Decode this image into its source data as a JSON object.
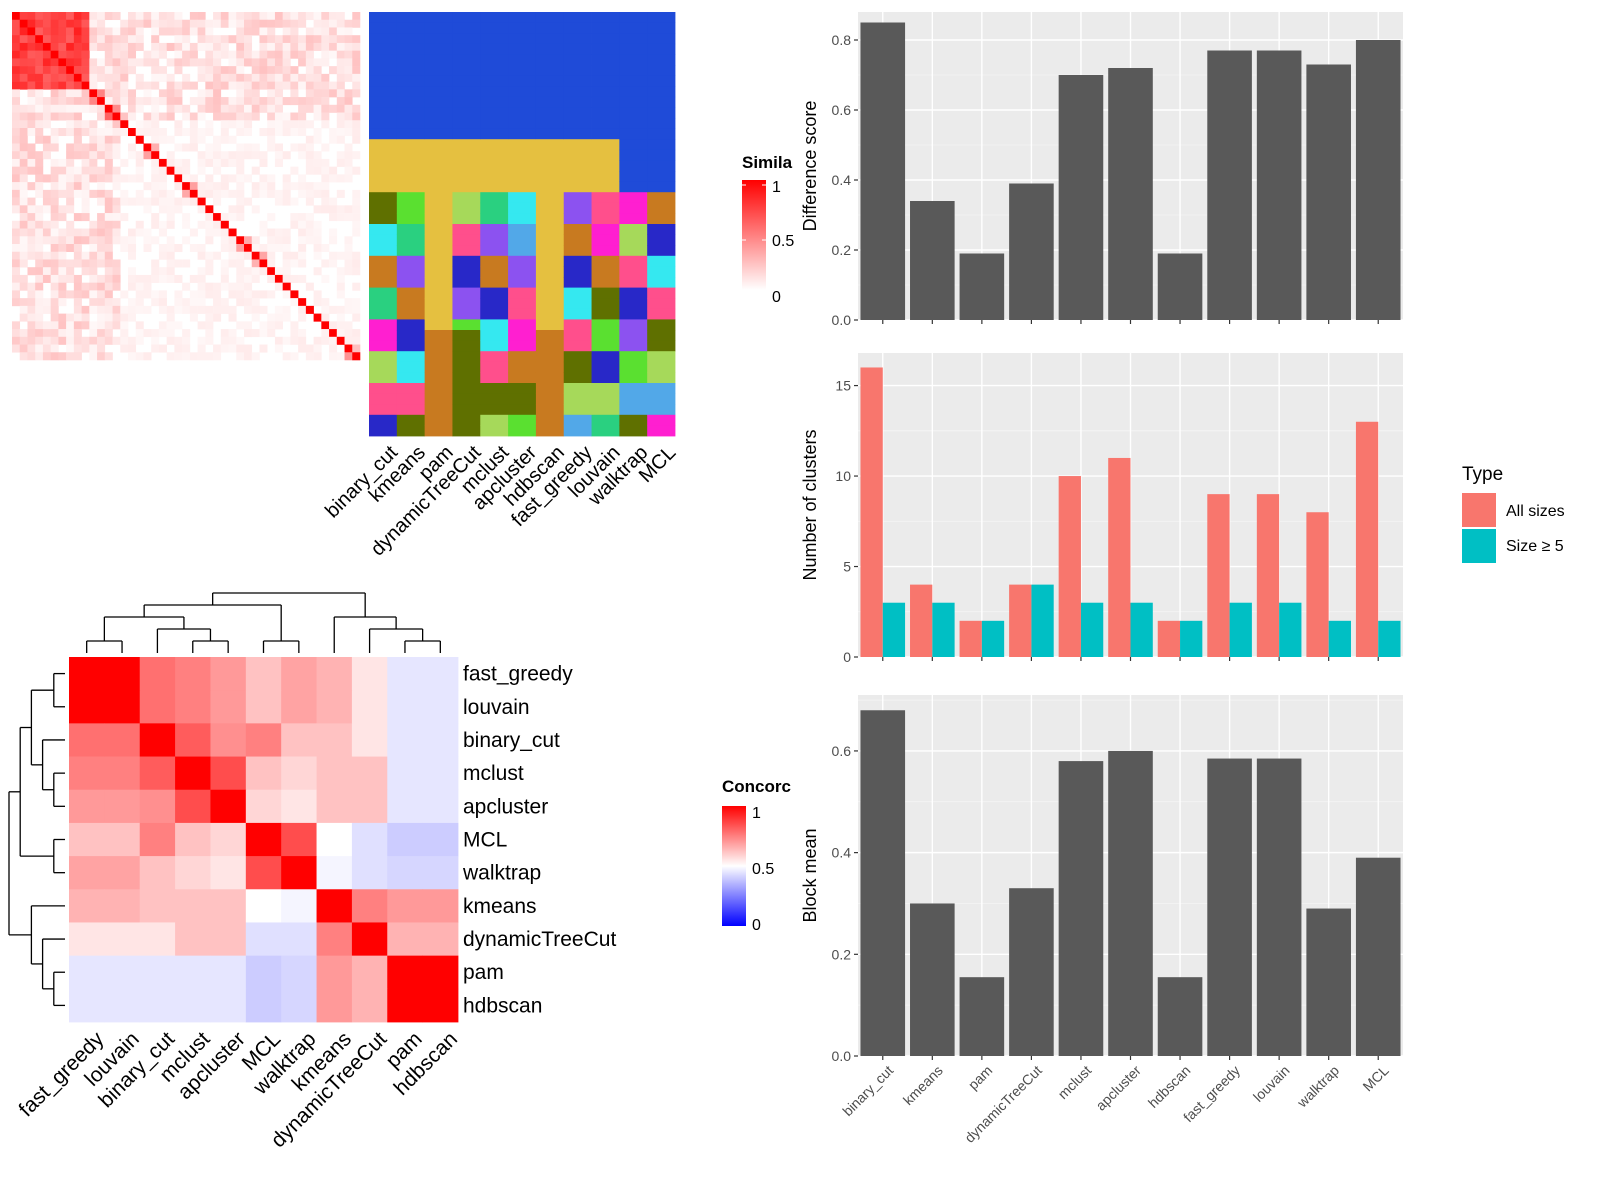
{
  "colors": {
    "panel_bg": "#EBEBEB",
    "grid": "#FFFFFF",
    "bar": "#595959",
    "series_all_sizes": "#F8766D",
    "series_size_ge_5": "#00BFC4",
    "heat_high": "#FF0000",
    "heat_mid": "#FFFFFF",
    "heat_low": "#0000FF",
    "cluster_palette": [
      "#1F4BD8",
      "#E5C040",
      "#5F7000",
      "#FF1FD0",
      "#8C52F0",
      "#35E8F0",
      "#A6D95A",
      "#5AE030",
      "#C87A20",
      "#FF4F8C",
      "#52A8E8",
      "#2AD080",
      "#2828C8"
    ]
  },
  "labels": {
    "similarity_legend_title": "Simila",
    "similarity_legend_ticks": [
      "1",
      "0.5",
      "0"
    ],
    "concordance_legend_title": "Concorc",
    "concordance_legend_ticks": [
      "1",
      "0.5",
      "0"
    ],
    "type_legend_title": "Type"
  },
  "methods_x_order": [
    "binary_cut",
    "kmeans",
    "pam",
    "dynamicTreeCut",
    "mclust",
    "apcluster",
    "hdbscan",
    "fast_greedy",
    "louvain",
    "walktrap",
    "MCL"
  ],
  "chart_data": [
    {
      "type": "heatmap",
      "id": "similarity_matrix",
      "legend_title": "Simila",
      "color_range": [
        0,
        1
      ],
      "block_sizes": [
        10,
        2,
        2,
        1,
        1,
        1,
        2,
        1,
        1,
        1,
        2,
        1,
        1,
        1,
        1,
        1,
        2,
        2,
        1,
        1,
        1,
        1,
        1,
        1,
        1,
        1,
        1,
        1,
        2
      ],
      "diagonal_value": 1.0,
      "block_values": [
        0.75,
        0.55,
        0.5,
        0.45,
        0.35
      ],
      "background_value": 0.04
    },
    {
      "type": "heatmap",
      "id": "cluster_assignments",
      "columns": [
        "binary_cut",
        "kmeans",
        "pam",
        "dynamicTreeCut",
        "mclust",
        "apcluster",
        "hdbscan",
        "fast_greedy",
        "louvain",
        "walktrap",
        "MCL"
      ],
      "row_count": 40
    },
    {
      "type": "heatmap",
      "id": "concordance_matrix",
      "legend_title": "Concorc",
      "color_range": [
        0,
        1
      ],
      "rows": [
        "fast_greedy",
        "louvain",
        "binary_cut",
        "mclust",
        "apcluster",
        "MCL",
        "walktrap",
        "kmeans",
        "dynamicTreeCut",
        "pam",
        "hdbscan"
      ],
      "columns": [
        "fast_greedy",
        "louvain",
        "binary_cut",
        "mclust",
        "apcluster",
        "MCL",
        "walktrap",
        "kmeans",
        "dynamicTreeCut",
        "pam",
        "hdbscan"
      ],
      "values": [
        [
          1.0,
          1.0,
          0.78,
          0.75,
          0.7,
          0.62,
          0.68,
          0.65,
          0.55,
          0.45,
          0.45
        ],
        [
          1.0,
          1.0,
          0.78,
          0.75,
          0.7,
          0.62,
          0.68,
          0.65,
          0.55,
          0.45,
          0.45
        ],
        [
          0.78,
          0.78,
          1.0,
          0.82,
          0.72,
          0.75,
          0.62,
          0.62,
          0.55,
          0.45,
          0.45
        ],
        [
          0.75,
          0.75,
          0.82,
          1.0,
          0.85,
          0.62,
          0.58,
          0.62,
          0.62,
          0.45,
          0.45
        ],
        [
          0.7,
          0.7,
          0.72,
          0.85,
          1.0,
          0.58,
          0.55,
          0.62,
          0.62,
          0.45,
          0.45
        ],
        [
          0.62,
          0.62,
          0.75,
          0.62,
          0.58,
          1.0,
          0.85,
          0.5,
          0.44,
          0.4,
          0.4
        ],
        [
          0.68,
          0.68,
          0.62,
          0.58,
          0.55,
          0.85,
          1.0,
          0.48,
          0.44,
          0.42,
          0.42
        ],
        [
          0.65,
          0.65,
          0.62,
          0.62,
          0.62,
          0.5,
          0.48,
          1.0,
          0.75,
          0.7,
          0.7
        ],
        [
          0.55,
          0.55,
          0.55,
          0.62,
          0.62,
          0.44,
          0.44,
          0.75,
          1.0,
          0.65,
          0.65
        ],
        [
          0.45,
          0.45,
          0.45,
          0.45,
          0.45,
          0.4,
          0.42,
          0.7,
          0.65,
          1.0,
          1.0
        ],
        [
          0.45,
          0.45,
          0.45,
          0.45,
          0.45,
          0.4,
          0.42,
          0.7,
          0.65,
          1.0,
          1.0
        ]
      ]
    },
    {
      "type": "bar",
      "id": "difference_score",
      "categories": [
        "binary_cut",
        "kmeans",
        "pam",
        "dynamicTreeCut",
        "mclust",
        "apcluster",
        "hdbscan",
        "fast_greedy",
        "louvain",
        "walktrap",
        "MCL"
      ],
      "values": [
        0.85,
        0.34,
        0.19,
        0.39,
        0.7,
        0.72,
        0.19,
        0.77,
        0.77,
        0.73,
        0.8
      ],
      "ylabel": "Difference score",
      "ylim": [
        0,
        0.88
      ],
      "yticks": [
        0.0,
        0.2,
        0.4,
        0.6,
        0.8
      ],
      "grid": true
    },
    {
      "type": "bar",
      "id": "number_of_clusters",
      "categories": [
        "binary_cut",
        "kmeans",
        "pam",
        "dynamicTreeCut",
        "mclust",
        "apcluster",
        "hdbscan",
        "fast_greedy",
        "louvain",
        "walktrap",
        "MCL"
      ],
      "series": [
        {
          "name": "All sizes",
          "values": [
            16,
            4,
            2,
            4,
            10,
            11,
            2,
            9,
            9,
            8,
            13
          ]
        },
        {
          "name": "Size ≥ 5",
          "values": [
            3,
            3,
            2,
            4,
            3,
            3,
            2,
            3,
            3,
            2,
            2
          ]
        }
      ],
      "ylabel": "Number of clusters",
      "ylim": [
        0,
        16.8
      ],
      "yticks": [
        0,
        5,
        10,
        15
      ],
      "legend_title": "Type",
      "legend_position": "right",
      "grid": true
    },
    {
      "type": "bar",
      "id": "block_mean",
      "categories": [
        "binary_cut",
        "kmeans",
        "pam",
        "dynamicTreeCut",
        "mclust",
        "apcluster",
        "hdbscan",
        "fast_greedy",
        "louvain",
        "walktrap",
        "MCL"
      ],
      "values": [
        0.68,
        0.3,
        0.155,
        0.33,
        0.58,
        0.6,
        0.155,
        0.585,
        0.585,
        0.29,
        0.39
      ],
      "ylabel": "Block mean",
      "ylim": [
        0,
        0.71
      ],
      "yticks": [
        0.0,
        0.2,
        0.4,
        0.6
      ],
      "grid": true
    }
  ]
}
